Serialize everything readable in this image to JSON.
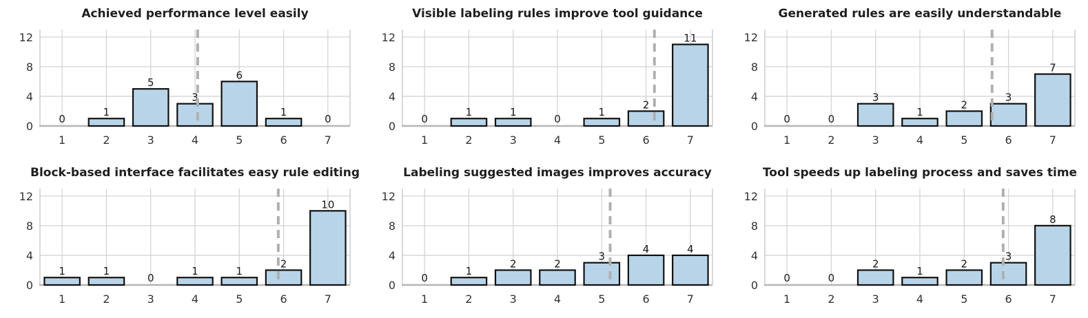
{
  "figure_name": "User study Likert-scale response histograms",
  "colors": {
    "background": "#ffffff",
    "bar_fill": "#b8d4e8",
    "bar_edge": "#111111",
    "grid": "#d4d4d4",
    "spine": "#c9c9c9",
    "bottom_spine": "#b5b5b5",
    "mean_line": "#b0b0b0",
    "title_text": "#1f1f1f",
    "tick_text": "#333333",
    "value_text": "#1a1a1a"
  },
  "axis": {
    "x_ticks": [
      1,
      2,
      3,
      4,
      5,
      6,
      7
    ],
    "y_ticks": [
      0,
      4,
      8,
      12
    ],
    "ylim": [
      0,
      13
    ],
    "grid": "on",
    "legend": "none"
  },
  "chart_data": [
    {
      "type": "bar",
      "title": "Achieved performance level easily",
      "categories": [
        1,
        2,
        3,
        4,
        5,
        6,
        7
      ],
      "values": [
        0,
        1,
        5,
        3,
        6,
        1,
        0
      ],
      "mean_line_x": 4.06,
      "xlabel": "",
      "ylabel": ""
    },
    {
      "type": "bar",
      "title": "Visible labeling rules improve tool guidance",
      "categories": [
        1,
        2,
        3,
        4,
        5,
        6,
        7
      ],
      "values": [
        0,
        1,
        1,
        0,
        1,
        2,
        11
      ],
      "mean_line_x": 6.19,
      "xlabel": "",
      "ylabel": ""
    },
    {
      "type": "bar",
      "title": "Generated rules are easily understandable",
      "categories": [
        1,
        2,
        3,
        4,
        5,
        6,
        7
      ],
      "values": [
        0,
        0,
        3,
        1,
        2,
        3,
        7
      ],
      "mean_line_x": 5.63,
      "xlabel": "",
      "ylabel": ""
    },
    {
      "type": "bar",
      "title": "Block-based interface facilitates easy rule editing",
      "categories": [
        1,
        2,
        3,
        4,
        5,
        6,
        7
      ],
      "values": [
        1,
        1,
        0,
        1,
        1,
        2,
        10
      ],
      "mean_line_x": 5.88,
      "xlabel": "",
      "ylabel": ""
    },
    {
      "type": "bar",
      "title": "Labeling suggested images improves accuracy",
      "categories": [
        1,
        2,
        3,
        4,
        5,
        6,
        7
      ],
      "values": [
        0,
        1,
        2,
        2,
        3,
        4,
        4
      ],
      "mean_line_x": 5.19,
      "xlabel": "",
      "ylabel": ""
    },
    {
      "type": "bar",
      "title": "Tool speeds up labeling process and saves time",
      "categories": [
        1,
        2,
        3,
        4,
        5,
        6,
        7
      ],
      "values": [
        0,
        0,
        2,
        1,
        2,
        3,
        8
      ],
      "mean_line_x": 5.88,
      "xlabel": "",
      "ylabel": ""
    }
  ]
}
